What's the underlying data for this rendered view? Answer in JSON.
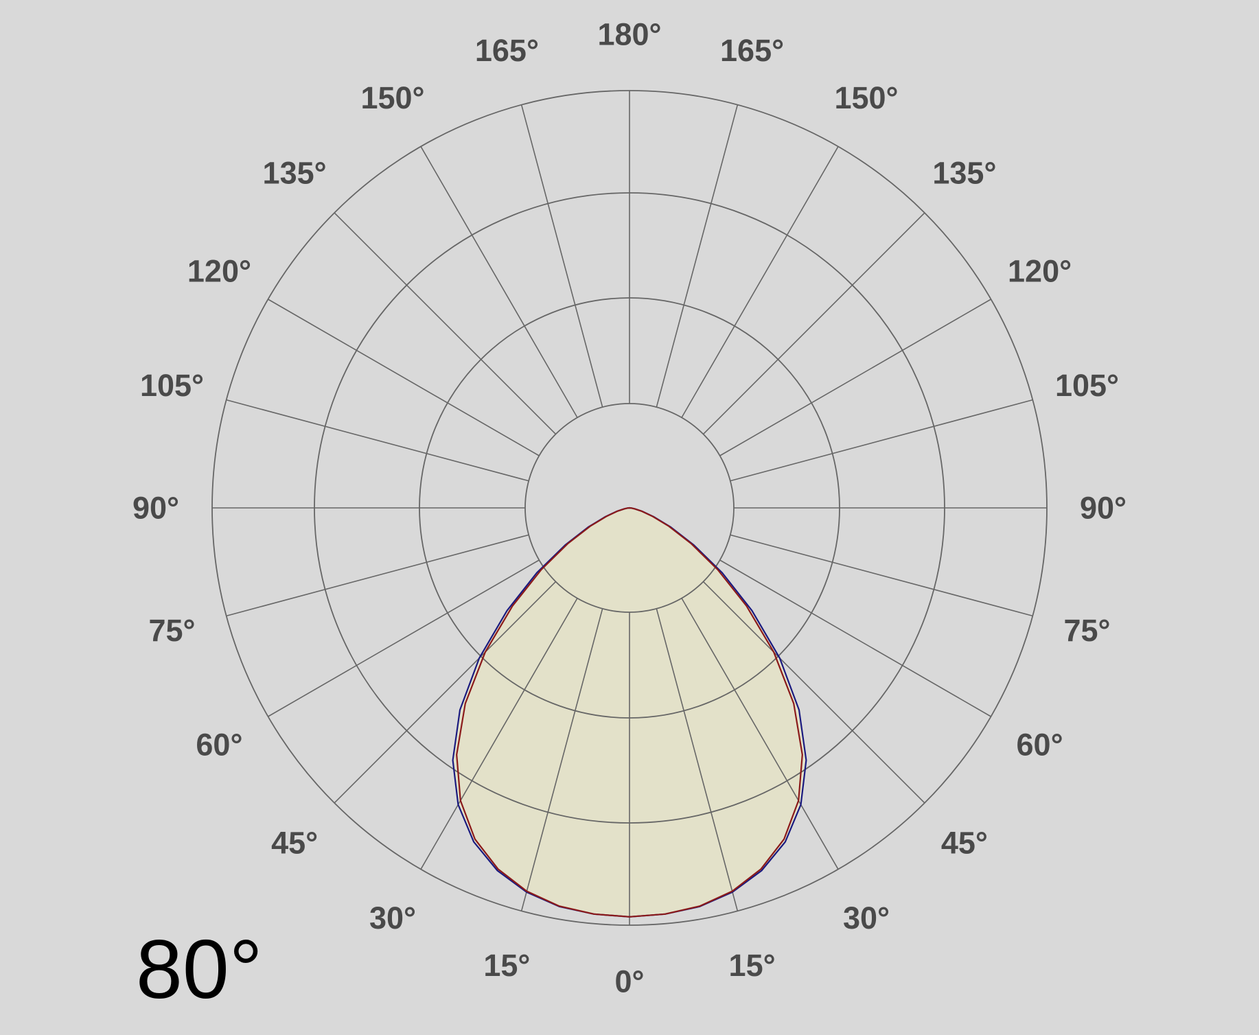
{
  "beam_angle_label": "80°",
  "colors": {
    "background": "#d9d9d9",
    "grid": "#666666",
    "fill": "#e3e1c9",
    "series_blue": "#1a1a80",
    "series_red": "#8b1a1a",
    "label": "#4a4a4a"
  },
  "chart_data": {
    "type": "polar",
    "title": "80°",
    "grid": true,
    "angular_ticks": [
      0,
      15,
      30,
      45,
      60,
      75,
      90,
      105,
      120,
      135,
      150,
      165,
      180
    ],
    "angular_labels": {
      "left": [
        "0°",
        "15°",
        "30°",
        "45°",
        "60°",
        "75°",
        "90°",
        "105°",
        "120°",
        "135°",
        "150°",
        "165°",
        "180°"
      ],
      "right": [
        "15°",
        "30°",
        "45°",
        "60°",
        "75°",
        "90°",
        "105°",
        "120°",
        "135°",
        "150°",
        "165°"
      ]
    },
    "radial_rings": [
      0.25,
      0.5,
      0.75,
      1.0
    ],
    "series": [
      {
        "color": "#1a1a80",
        "angles": [
          0,
          5,
          10,
          15,
          20,
          25,
          30,
          35,
          40,
          45,
          50,
          55,
          60,
          65,
          70,
          75,
          80,
          85,
          90
        ],
        "values": [
          0.98,
          0.977,
          0.97,
          0.953,
          0.925,
          0.883,
          0.821,
          0.738,
          0.632,
          0.509,
          0.383,
          0.271,
          0.178,
          0.109,
          0.061,
          0.031,
          0.013,
          0.004,
          0.0
        ]
      },
      {
        "color": "#8b1a1a",
        "angles": [
          0,
          5,
          10,
          15,
          20,
          25,
          30,
          35,
          40,
          45,
          50,
          55,
          60,
          65,
          70,
          75,
          80,
          85,
          90
        ],
        "values": [
          0.98,
          0.977,
          0.969,
          0.951,
          0.921,
          0.876,
          0.81,
          0.722,
          0.612,
          0.489,
          0.366,
          0.258,
          0.17,
          0.104,
          0.058,
          0.03,
          0.012,
          0.004,
          0.0
        ]
      }
    ]
  }
}
